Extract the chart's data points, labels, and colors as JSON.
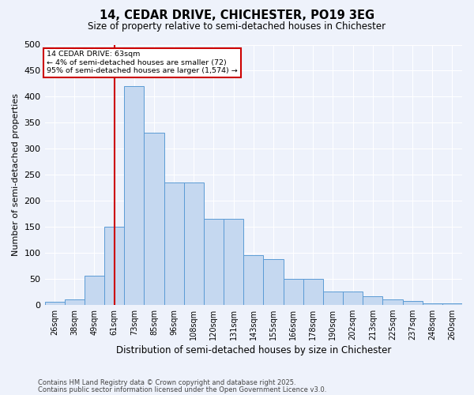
{
  "title": "14, CEDAR DRIVE, CHICHESTER, PO19 3EG",
  "subtitle": "Size of property relative to semi-detached houses in Chichester",
  "xlabel": "Distribution of semi-detached houses by size in Chichester",
  "ylabel": "Number of semi-detached properties",
  "footnote1": "Contains HM Land Registry data © Crown copyright and database right 2025.",
  "footnote2": "Contains public sector information licensed under the Open Government Licence v3.0.",
  "bin_labels": [
    "26sqm",
    "38sqm",
    "49sqm",
    "61sqm",
    "73sqm",
    "85sqm",
    "96sqm",
    "108sqm",
    "120sqm",
    "131sqm",
    "143sqm",
    "155sqm",
    "166sqm",
    "178sqm",
    "190sqm",
    "202sqm",
    "213sqm",
    "225sqm",
    "237sqm",
    "248sqm",
    "260sqm"
  ],
  "bar_values": [
    5,
    10,
    55,
    150,
    420,
    330,
    235,
    235,
    165,
    165,
    95,
    88,
    50,
    50,
    25,
    25,
    17,
    10,
    7,
    2,
    2
  ],
  "bar_color": "#c5d8f0",
  "bar_edge_color": "#5b9bd5",
  "background_color": "#eef2fb",
  "grid_color": "#ffffff",
  "property_line_label": "14 CEDAR DRIVE: 63sqm",
  "annotation_smaller": "← 4% of semi-detached houses are smaller (72)",
  "annotation_larger": "95% of semi-detached houses are larger (1,574) →",
  "annotation_box_color": "#ffffff",
  "annotation_box_edge": "#cc0000",
  "red_line_color": "#cc0000",
  "ylim": [
    0,
    500
  ],
  "yticks": [
    0,
    50,
    100,
    150,
    200,
    250,
    300,
    350,
    400,
    450,
    500
  ],
  "num_bins": 21
}
